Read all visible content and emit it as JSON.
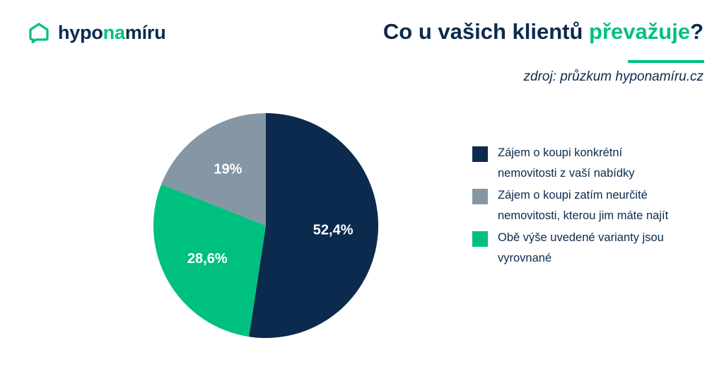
{
  "brand": {
    "name_part1": "hypo",
    "name_part2": "na",
    "name_part3": "míru",
    "logo_icon": "house-speech-bubble-icon",
    "color_dark": "#0b2a4d",
    "color_accent": "#00c07f"
  },
  "header": {
    "title_main": "Co u vašich klientů ",
    "title_accent": "převažuje",
    "title_end": "?",
    "source": "zdroj: průzkum hyponamíru.cz"
  },
  "chart_data": {
    "type": "pie",
    "title": "Co u vašich klientů převažuje?",
    "start_angle_deg": 0,
    "direction": "clockwise",
    "slices": [
      {
        "label": "Zájem o koupi konkrétní\nnemovitosti z vaší nabídky",
        "value": 52.4,
        "display": "52,4%",
        "color": "#0b2a4d"
      },
      {
        "label": "Obě výše uvedené varianty jsou\nvyrovnané",
        "value": 28.6,
        "display": "28,6%",
        "color": "#00c07f"
      },
      {
        "label": "Zájem o koupi zatím neurčité\nnemovitosti, kterou jim máte najít",
        "value": 19,
        "display": "19%",
        "color": "#8596a5"
      }
    ],
    "legend": {
      "placement": "right",
      "order": [
        0,
        2,
        1
      ]
    }
  }
}
